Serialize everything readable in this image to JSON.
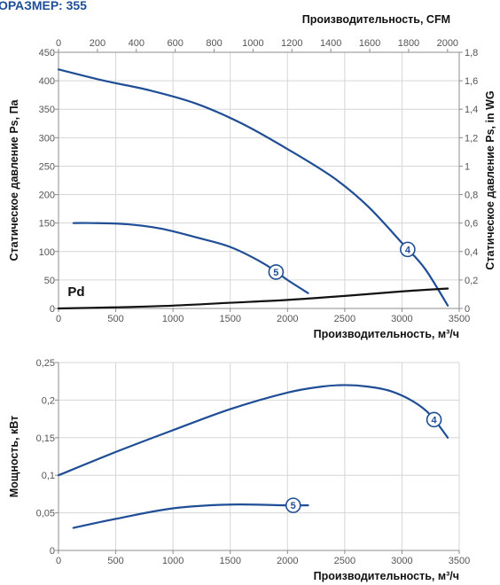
{
  "header": {
    "title": "ОРАЗМЕР: 355"
  },
  "colors": {
    "series": "#1f4e96",
    "pd": "#111111",
    "grid": "#d6d6d6",
    "axis": "#8c8c8c"
  },
  "chart_data": [
    {
      "type": "line",
      "top_xlabel": "Производительность, CFM",
      "xlabel": "Производительность, м³/ч",
      "ylabel": "Статическое давление Ps, Па",
      "right_ylabel": "Статическое давление Ps, in WG",
      "xlim": [
        0,
        3500
      ],
      "xticks": [
        "0",
        "500",
        "1000",
        "1500",
        "2000",
        "2500",
        "3000",
        "3500"
      ],
      "ylim": [
        0,
        450
      ],
      "yticks": [
        "0",
        "50",
        "100",
        "150",
        "200",
        "250",
        "300",
        "350",
        "400",
        "450"
      ],
      "top_xlim": [
        0,
        2060
      ],
      "top_xticks": [
        "0",
        "200",
        "400",
        "600",
        "800",
        "1000",
        "1200",
        "1400",
        "1600",
        "1800",
        "2000"
      ],
      "right_ylim": [
        0,
        1.8
      ],
      "right_yticks": [
        "0",
        "0,2",
        "0,4",
        "0,6",
        "0,8",
        "1",
        "1,2",
        "1,4",
        "1,6",
        "1,8"
      ],
      "grid": true,
      "series": [
        {
          "name": "4",
          "kind": "curve",
          "marker_at": 3050,
          "x": [
            0,
            400,
            800,
            1200,
            1600,
            2000,
            2400,
            2700,
            3000,
            3200,
            3400
          ],
          "y": [
            420,
            400,
            383,
            360,
            325,
            280,
            230,
            180,
            115,
            70,
            5
          ]
        },
        {
          "name": "5",
          "kind": "curve",
          "marker_at": 1900,
          "x": [
            130,
            300,
            600,
            900,
            1200,
            1500,
            1800,
            2000,
            2180
          ],
          "y": [
            150,
            150,
            148,
            140,
            125,
            108,
            78,
            50,
            27
          ]
        },
        {
          "name": "Pd",
          "kind": "pd",
          "x": [
            0,
            500,
            1000,
            1500,
            2000,
            2500,
            3000,
            3400
          ],
          "y": [
            0,
            2,
            5,
            10,
            15,
            22,
            30,
            35
          ]
        }
      ]
    },
    {
      "type": "line",
      "xlabel": "Производительность, м³/ч",
      "ylabel": "Мощность, кВт",
      "xlim": [
        0,
        3500
      ],
      "xticks": [
        "0",
        "500",
        "1000",
        "1500",
        "2000",
        "2500",
        "3000",
        "3500"
      ],
      "ylim": [
        0,
        0.25
      ],
      "yticks": [
        "0",
        "0,05",
        "0,1",
        "0,15",
        "0,2",
        "0,25"
      ],
      "grid": true,
      "series": [
        {
          "name": "4",
          "kind": "curve",
          "marker_at": 3280,
          "x": [
            0,
            500,
            1000,
            1500,
            2000,
            2300,
            2500,
            2700,
            2900,
            3100,
            3250,
            3400
          ],
          "y": [
            0.1,
            0.131,
            0.16,
            0.188,
            0.21,
            0.218,
            0.22,
            0.218,
            0.212,
            0.198,
            0.18,
            0.15
          ]
        },
        {
          "name": "5",
          "kind": "curve",
          "marker_at": 2050,
          "x": [
            130,
            500,
            1000,
            1500,
            2000,
            2180
          ],
          "y": [
            0.03,
            0.042,
            0.056,
            0.061,
            0.06,
            0.06
          ]
        }
      ]
    }
  ]
}
